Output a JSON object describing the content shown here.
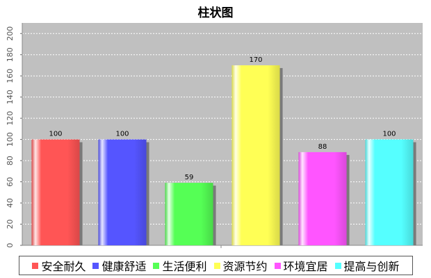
{
  "chart_data": {
    "type": "bar",
    "title": "柱状图",
    "categories": [
      "安全耐久",
      "健康舒适",
      "生活便利",
      "资源节约",
      "环境宜居",
      "提高与创新"
    ],
    "values": [
      100,
      100,
      59,
      170,
      88,
      100
    ],
    "colors": [
      "#ff5555",
      "#5555ff",
      "#55ff55",
      "#ffff55",
      "#ff55ff",
      "#55ffff"
    ],
    "ylim": [
      0,
      210
    ],
    "yticks": [
      0,
      20,
      40,
      60,
      80,
      100,
      120,
      140,
      160,
      180,
      200
    ],
    "grid": true,
    "legend": "bottom",
    "plot_background": "#c0c0c0"
  }
}
